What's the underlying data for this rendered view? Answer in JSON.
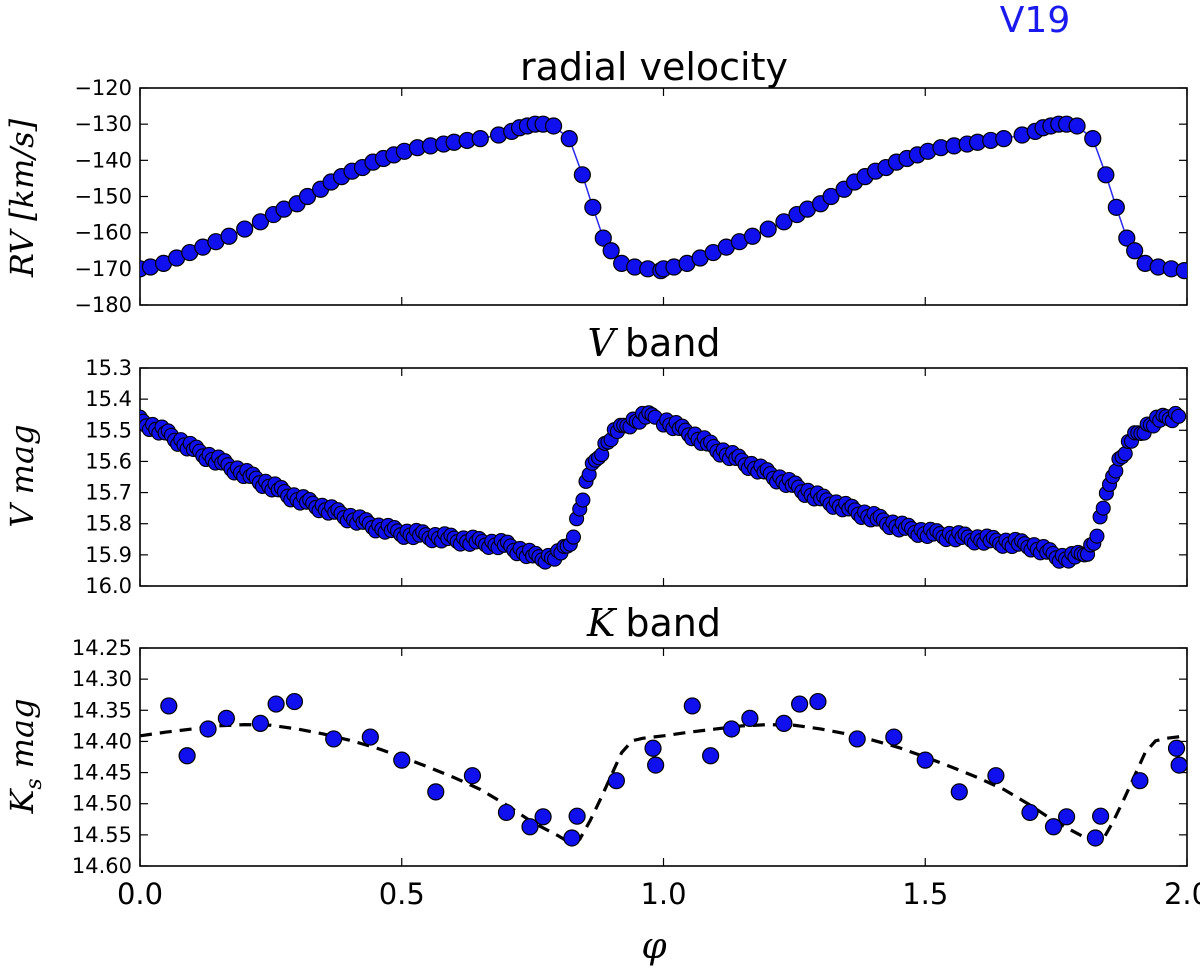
{
  "star_label": "V19",
  "colors": {
    "marker": "#1010ee",
    "star_label": "#1a1aee",
    "rv_line": "#2a2aee",
    "fit": "#000000"
  },
  "chart_data": [
    {
      "id": "rv",
      "type": "line",
      "title": "radial velocity",
      "ylabel": "RV [km/s]",
      "ylabel_parts": {
        "main": "RV",
        "unit": "[km/s]"
      },
      "ylim": [
        -180,
        -120
      ],
      "yticks": [
        "−120",
        "−130",
        "−140",
        "−150",
        "−160",
        "−170",
        "−180"
      ],
      "ytick_values": [
        -120,
        -130,
        -140,
        -150,
        -160,
        -170,
        -180
      ],
      "xlim": [
        0,
        2
      ],
      "series": [
        {
          "name": "RV",
          "phase": [
            0.0,
            0.02,
            0.045,
            0.07,
            0.095,
            0.12,
            0.145,
            0.17,
            0.2,
            0.23,
            0.255,
            0.275,
            0.3,
            0.32,
            0.345,
            0.365,
            0.385,
            0.405,
            0.425,
            0.445,
            0.465,
            0.485,
            0.505,
            0.53,
            0.555,
            0.58,
            0.6,
            0.625,
            0.65,
            0.685,
            0.71,
            0.725,
            0.74,
            0.755,
            0.77,
            0.79,
            0.82,
            0.845,
            0.865,
            0.885,
            0.9,
            0.92,
            0.945,
            0.97,
            0.995
          ],
          "values": [
            -170.0,
            -169.5,
            -168.5,
            -167.0,
            -165.5,
            -164.0,
            -162.5,
            -161.0,
            -159.0,
            -157.0,
            -155.0,
            -153.5,
            -152.0,
            -150.0,
            -148.0,
            -146.0,
            -144.5,
            -143.0,
            -142.0,
            -140.5,
            -139.5,
            -138.5,
            -137.5,
            -136.5,
            -136.0,
            -135.5,
            -135.0,
            -134.5,
            -134.0,
            -133.0,
            -132.0,
            -131.0,
            -130.5,
            -130.0,
            -130.0,
            -130.5,
            -134.0,
            -144.0,
            -153.0,
            -161.5,
            -165.0,
            -168.5,
            -169.5,
            -170.0,
            -170.5
          ]
        }
      ]
    },
    {
      "id": "v",
      "type": "scatter",
      "title": "V band",
      "title_parts": {
        "symbol": "V",
        "text": "band"
      },
      "ylabel": "V mag",
      "ylim": [
        16.0,
        15.3
      ],
      "yticks": [
        "15.3",
        "15.4",
        "15.5",
        "15.6",
        "15.7",
        "15.8",
        "15.9",
        "16.0"
      ],
      "ytick_values": [
        15.3,
        15.4,
        15.5,
        15.6,
        15.7,
        15.8,
        15.9,
        16.0
      ],
      "xlim": [
        0,
        2
      ],
      "series": [
        {
          "name": "V",
          "phase": [
            0.0,
            0.05,
            0.1,
            0.15,
            0.2,
            0.25,
            0.3,
            0.35,
            0.4,
            0.45,
            0.5,
            0.55,
            0.6,
            0.65,
            0.7,
            0.73,
            0.76,
            0.78,
            0.8,
            0.82,
            0.83,
            0.84,
            0.85,
            0.86,
            0.88,
            0.9,
            0.93,
            0.96,
            0.99
          ],
          "values": [
            15.47,
            15.51,
            15.56,
            15.6,
            15.64,
            15.68,
            15.72,
            15.75,
            15.78,
            15.81,
            15.83,
            15.84,
            15.85,
            15.86,
            15.87,
            15.89,
            15.91,
            15.91,
            15.9,
            15.87,
            15.82,
            15.75,
            15.69,
            15.63,
            15.57,
            15.52,
            15.48,
            15.46,
            15.45
          ]
        }
      ]
    },
    {
      "id": "k",
      "type": "scatter",
      "title": "K band",
      "title_parts": {
        "symbol": "K",
        "text": "band"
      },
      "ylabel": "Ks mag",
      "ylabel_parts": {
        "main": "K",
        "sub": "s",
        "rest": "mag"
      },
      "ylim": [
        14.6,
        14.25
      ],
      "yticks": [
        "14.25",
        "14.30",
        "14.35",
        "14.40",
        "14.45",
        "14.50",
        "14.55",
        "14.60"
      ],
      "ytick_values": [
        14.25,
        14.3,
        14.35,
        14.4,
        14.45,
        14.5,
        14.55,
        14.6
      ],
      "xlim": [
        0,
        2
      ],
      "xlabel": "φ",
      "xticks": [
        "0.0",
        "0.5",
        "1.0",
        "1.5",
        "2.0"
      ],
      "xtick_values": [
        0.0,
        0.5,
        1.0,
        1.5,
        2.0
      ],
      "series": [
        {
          "name": "Ks observations",
          "phase": [
            0.055,
            0.09,
            0.13,
            0.165,
            0.23,
            0.26,
            0.295,
            0.37,
            0.44,
            0.5,
            0.565,
            0.635,
            0.7,
            0.745,
            0.77,
            0.825,
            0.835,
            0.91,
            0.98,
            0.985
          ],
          "values": [
            14.343,
            14.423,
            14.38,
            14.363,
            14.371,
            14.34,
            14.336,
            14.396,
            14.393,
            14.43,
            14.481,
            14.455,
            14.514,
            14.537,
            14.521,
            14.555,
            14.52,
            14.463,
            14.411,
            14.438
          ]
        },
        {
          "name": "fit",
          "style": "dashed",
          "phase": [
            0.0,
            0.05,
            0.1,
            0.15,
            0.2,
            0.25,
            0.3,
            0.35,
            0.4,
            0.45,
            0.5,
            0.55,
            0.6,
            0.65,
            0.7,
            0.75,
            0.8,
            0.82,
            0.84,
            0.86,
            0.88,
            0.9,
            0.92,
            0.94,
            0.96,
            0.98,
            1.0
          ],
          "values": [
            14.391,
            14.385,
            14.38,
            14.375,
            14.373,
            14.374,
            14.38,
            14.388,
            14.398,
            14.41,
            14.425,
            14.441,
            14.458,
            14.477,
            14.502,
            14.53,
            14.552,
            14.562,
            14.557,
            14.527,
            14.492,
            14.455,
            14.418,
            14.399,
            14.395,
            14.393,
            14.391
          ]
        }
      ]
    }
  ]
}
